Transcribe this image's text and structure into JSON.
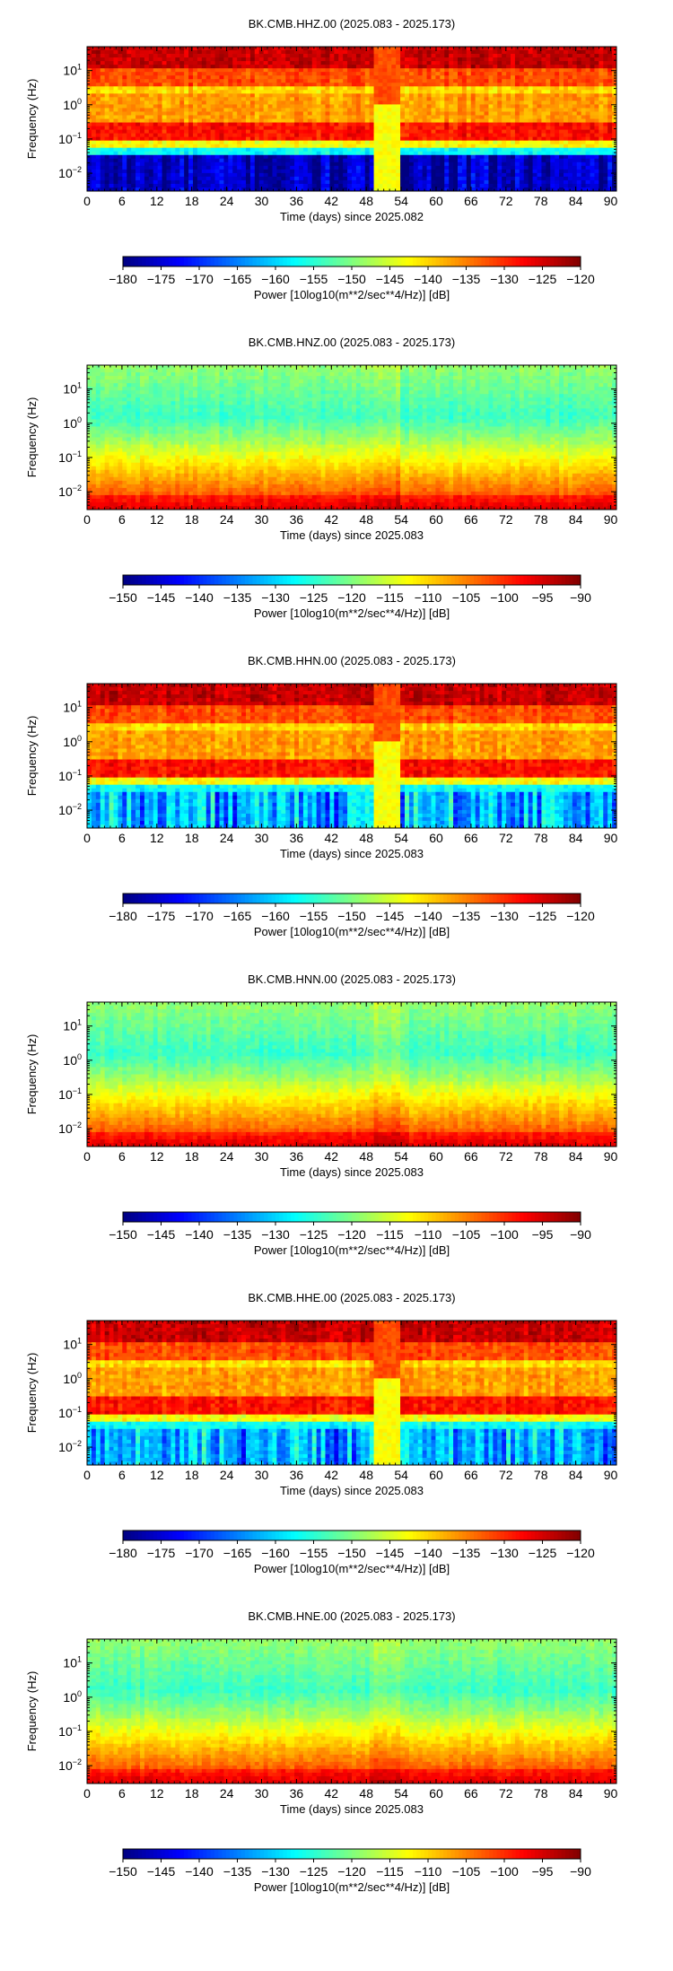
{
  "chart_data": [
    {
      "type": "heatmap",
      "title": "BK.CMB.HHZ.00 (2025.083 - 2025.173)",
      "xlabel": "Time (days) since 2025.082",
      "ylabel": "Frequency (Hz)",
      "xlim": [
        0,
        91
      ],
      "x_ticks": [
        "0",
        "6",
        "12",
        "18",
        "24",
        "30",
        "36",
        "42",
        "48",
        "54",
        "60",
        "66",
        "72",
        "78",
        "84",
        "90"
      ],
      "y_scale": "log",
      "ylim": [
        0.003,
        50
      ],
      "y_ticks": [
        {
          "base": "10",
          "exp": "1"
        },
        {
          "base": "10",
          "exp": "0"
        },
        {
          "base": "10",
          "exp": "−1"
        },
        {
          "base": "10",
          "exp": "−2"
        }
      ],
      "colorbar": {
        "label": "Power [10log10(m**2/sec**4/Hz)] [dB]",
        "range": [
          -180,
          -120
        ],
        "ticks": [
          "−180",
          "−175",
          "−170",
          "−165",
          "−160",
          "−155",
          "−150",
          "−145",
          "−140",
          "−135",
          "−130",
          "−125",
          "−120"
        ],
        "colormap": "jet"
      },
      "profile": "hh"
    },
    {
      "type": "heatmap",
      "title": "BK.CMB.HNZ.00 (2025.083 - 2025.173)",
      "xlabel": "Time (days) since 2025.083",
      "ylabel": "Frequency (Hz)",
      "xlim": [
        0,
        91
      ],
      "x_ticks": [
        "0",
        "6",
        "12",
        "18",
        "24",
        "30",
        "36",
        "42",
        "48",
        "54",
        "60",
        "66",
        "72",
        "78",
        "84",
        "90"
      ],
      "y_scale": "log",
      "ylim": [
        0.003,
        50
      ],
      "y_ticks": [
        {
          "base": "10",
          "exp": "1"
        },
        {
          "base": "10",
          "exp": "0"
        },
        {
          "base": "10",
          "exp": "−1"
        },
        {
          "base": "10",
          "exp": "−2"
        }
      ],
      "colorbar": {
        "label": "Power [10log10(m**2/sec**4/Hz)] [dB]",
        "range": [
          -150,
          -90
        ],
        "ticks": [
          "−150",
          "−145",
          "−140",
          "−135",
          "−130",
          "−125",
          "−120",
          "−115",
          "−110",
          "−105",
          "−100",
          "−95",
          "−90"
        ],
        "colormap": "jet"
      },
      "profile": "hn"
    },
    {
      "type": "heatmap",
      "title": "BK.CMB.HHN.00 (2025.083 - 2025.173)",
      "xlabel": "Time (days) since 2025.083",
      "ylabel": "Frequency (Hz)",
      "xlim": [
        0,
        91
      ],
      "x_ticks": [
        "0",
        "6",
        "12",
        "18",
        "24",
        "30",
        "36",
        "42",
        "48",
        "54",
        "60",
        "66",
        "72",
        "78",
        "84",
        "90"
      ],
      "y_scale": "log",
      "ylim": [
        0.003,
        50
      ],
      "y_ticks": [
        {
          "base": "10",
          "exp": "1"
        },
        {
          "base": "10",
          "exp": "0"
        },
        {
          "base": "10",
          "exp": "−1"
        },
        {
          "base": "10",
          "exp": "−2"
        }
      ],
      "colorbar": {
        "label": "Power [10log10(m**2/sec**4/Hz)] [dB]",
        "range": [
          -180,
          -120
        ],
        "ticks": [
          "−180",
          "−175",
          "−170",
          "−165",
          "−160",
          "−155",
          "−150",
          "−145",
          "−140",
          "−135",
          "−130",
          "−125",
          "−120"
        ],
        "colormap": "jet"
      },
      "profile": "hh2"
    },
    {
      "type": "heatmap",
      "title": "BK.CMB.HNN.00 (2025.083 - 2025.173)",
      "xlabel": "Time (days) since 2025.083",
      "ylabel": "Frequency (Hz)",
      "xlim": [
        0,
        91
      ],
      "x_ticks": [
        "0",
        "6",
        "12",
        "18",
        "24",
        "30",
        "36",
        "42",
        "48",
        "54",
        "60",
        "66",
        "72",
        "78",
        "84",
        "90"
      ],
      "y_scale": "log",
      "ylim": [
        0.003,
        50
      ],
      "y_ticks": [
        {
          "base": "10",
          "exp": "1"
        },
        {
          "base": "10",
          "exp": "0"
        },
        {
          "base": "10",
          "exp": "−1"
        },
        {
          "base": "10",
          "exp": "−2"
        }
      ],
      "colorbar": {
        "label": "Power [10log10(m**2/sec**4/Hz)] [dB]",
        "range": [
          -150,
          -90
        ],
        "ticks": [
          "−150",
          "−145",
          "−140",
          "−135",
          "−130",
          "−125",
          "−120",
          "−115",
          "−110",
          "−105",
          "−100",
          "−95",
          "−90"
        ],
        "colormap": "jet"
      },
      "profile": "hn"
    },
    {
      "type": "heatmap",
      "title": "BK.CMB.HHE.00 (2025.083 - 2025.173)",
      "xlabel": "Time (days) since 2025.083",
      "ylabel": "Frequency (Hz)",
      "xlim": [
        0,
        91
      ],
      "x_ticks": [
        "0",
        "6",
        "12",
        "18",
        "24",
        "30",
        "36",
        "42",
        "48",
        "54",
        "60",
        "66",
        "72",
        "78",
        "84",
        "90"
      ],
      "y_scale": "log",
      "ylim": [
        0.003,
        50
      ],
      "y_ticks": [
        {
          "base": "10",
          "exp": "1"
        },
        {
          "base": "10",
          "exp": "0"
        },
        {
          "base": "10",
          "exp": "−1"
        },
        {
          "base": "10",
          "exp": "−2"
        }
      ],
      "colorbar": {
        "label": "Power [10log10(m**2/sec**4/Hz)] [dB]",
        "range": [
          -180,
          -120
        ],
        "ticks": [
          "−180",
          "−175",
          "−170",
          "−165",
          "−160",
          "−155",
          "−150",
          "−145",
          "−140",
          "−135",
          "−130",
          "−125",
          "−120"
        ],
        "colormap": "jet"
      },
      "profile": "hh2"
    },
    {
      "type": "heatmap",
      "title": "BK.CMB.HNE.00 (2025.083 - 2025.173)",
      "xlabel": "Time (days) since 2025.083",
      "ylabel": "Frequency (Hz)",
      "xlim": [
        0,
        91
      ],
      "x_ticks": [
        "0",
        "6",
        "12",
        "18",
        "24",
        "30",
        "36",
        "42",
        "48",
        "54",
        "60",
        "66",
        "72",
        "78",
        "84",
        "90"
      ],
      "y_scale": "log",
      "ylim": [
        0.003,
        50
      ],
      "y_ticks": [
        {
          "base": "10",
          "exp": "1"
        },
        {
          "base": "10",
          "exp": "0"
        },
        {
          "base": "10",
          "exp": "−1"
        },
        {
          "base": "10",
          "exp": "−2"
        }
      ],
      "colorbar": {
        "label": "Power [10log10(m**2/sec**4/Hz)] [dB]",
        "range": [
          -150,
          -90
        ],
        "ticks": [
          "−150",
          "−145",
          "−140",
          "−135",
          "−130",
          "−125",
          "−120",
          "−115",
          "−110",
          "−105",
          "−100",
          "−95",
          "−90"
        ],
        "colormap": "jet"
      },
      "profile": "hn"
    }
  ]
}
